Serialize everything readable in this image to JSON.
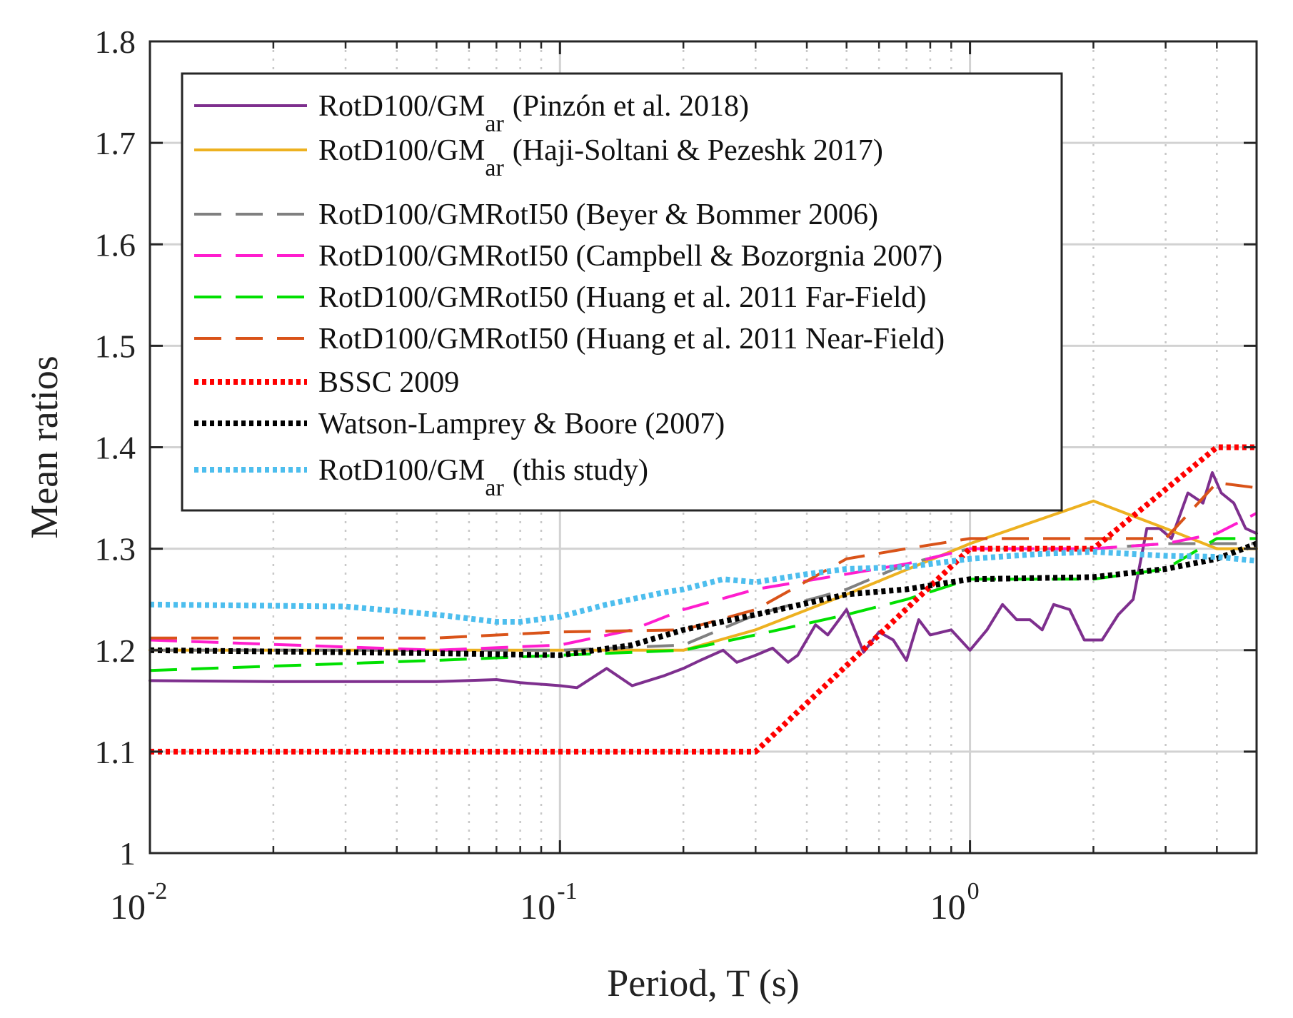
{
  "chart_data": {
    "type": "line",
    "title": "",
    "xlabel": "Period, T (s)",
    "ylabel": "Mean ratios",
    "xscale": "log",
    "xlim": [
      0.01,
      5
    ],
    "ylim": [
      1.0,
      1.8
    ],
    "grid": true,
    "legend_position": "upper-left",
    "x_ticks": [
      {
        "base": "10",
        "exp": "-2",
        "value": 0.01
      },
      {
        "base": "10",
        "exp": "-1",
        "value": 0.1
      },
      {
        "base": "10",
        "exp": "0",
        "value": 1
      }
    ],
    "y_ticks": [
      "1",
      "1.1",
      "1.2",
      "1.3",
      "1.4",
      "1.5",
      "1.6",
      "1.7",
      "1.8"
    ],
    "series": [
      {
        "name": "RotD100/GM",
        "name_sub": "ar",
        "name_suffix": "(Pinzón et al. 2018)",
        "color": "#7e2f8e",
        "style": "solid",
        "points": [
          [
            0.01,
            1.17
          ],
          [
            0.02,
            1.169
          ],
          [
            0.05,
            1.169
          ],
          [
            0.07,
            1.171
          ],
          [
            0.08,
            1.168
          ],
          [
            0.1,
            1.165
          ],
          [
            0.11,
            1.163
          ],
          [
            0.13,
            1.182
          ],
          [
            0.15,
            1.165
          ],
          [
            0.18,
            1.175
          ],
          [
            0.2,
            1.182
          ],
          [
            0.22,
            1.19
          ],
          [
            0.25,
            1.2
          ],
          [
            0.27,
            1.188
          ],
          [
            0.3,
            1.195
          ],
          [
            0.33,
            1.202
          ],
          [
            0.36,
            1.188
          ],
          [
            0.38,
            1.195
          ],
          [
            0.42,
            1.225
          ],
          [
            0.45,
            1.215
          ],
          [
            0.5,
            1.24
          ],
          [
            0.55,
            1.198
          ],
          [
            0.6,
            1.218
          ],
          [
            0.65,
            1.21
          ],
          [
            0.7,
            1.19
          ],
          [
            0.75,
            1.23
          ],
          [
            0.8,
            1.215
          ],
          [
            0.9,
            1.22
          ],
          [
            1.0,
            1.2
          ],
          [
            1.1,
            1.22
          ],
          [
            1.2,
            1.245
          ],
          [
            1.3,
            1.23
          ],
          [
            1.4,
            1.23
          ],
          [
            1.5,
            1.22
          ],
          [
            1.6,
            1.245
          ],
          [
            1.75,
            1.24
          ],
          [
            1.9,
            1.21
          ],
          [
            2.1,
            1.21
          ],
          [
            2.3,
            1.235
          ],
          [
            2.5,
            1.25
          ],
          [
            2.7,
            1.32
          ],
          [
            2.9,
            1.32
          ],
          [
            3.1,
            1.31
          ],
          [
            3.4,
            1.355
          ],
          [
            3.7,
            1.345
          ],
          [
            3.9,
            1.375
          ],
          [
            4.1,
            1.355
          ],
          [
            4.4,
            1.345
          ],
          [
            4.7,
            1.32
          ],
          [
            5.0,
            1.315
          ]
        ]
      },
      {
        "name": "RotD100/GM",
        "name_sub": "ar",
        "name_suffix": "(Haji-Soltani & Pezeshk 2017)",
        "color": "#edb120",
        "style": "solid",
        "points": [
          [
            0.01,
            1.2
          ],
          [
            0.1,
            1.2
          ],
          [
            0.2,
            1.2
          ],
          [
            0.3,
            1.22
          ],
          [
            0.5,
            1.255
          ],
          [
            1.0,
            1.305
          ],
          [
            2.0,
            1.347
          ],
          [
            3.0,
            1.32
          ],
          [
            4.0,
            1.3
          ],
          [
            5.0,
            1.3
          ]
        ]
      },
      {
        "name": "RotD100/GMRotI50 (Beyer & Bommer 2006)",
        "color": "#808080",
        "style": "dashed",
        "points": [
          [
            0.01,
            1.2
          ],
          [
            0.05,
            1.2
          ],
          [
            0.1,
            1.2
          ],
          [
            0.2,
            1.205
          ],
          [
            0.3,
            1.235
          ],
          [
            0.5,
            1.26
          ],
          [
            0.7,
            1.285
          ],
          [
            1.0,
            1.3
          ],
          [
            2.0,
            1.3
          ],
          [
            3.0,
            1.305
          ],
          [
            4.0,
            1.305
          ],
          [
            5.0,
            1.305
          ]
        ]
      },
      {
        "name": "RotD100/GMRotI50 (Campbell & Bozorgnia 2007)",
        "color": "#ff1dce",
        "style": "dashed",
        "points": [
          [
            0.01,
            1.21
          ],
          [
            0.05,
            1.2
          ],
          [
            0.1,
            1.205
          ],
          [
            0.15,
            1.22
          ],
          [
            0.2,
            1.24
          ],
          [
            0.3,
            1.26
          ],
          [
            0.5,
            1.275
          ],
          [
            0.7,
            1.285
          ],
          [
            1.0,
            1.3
          ],
          [
            2.0,
            1.3
          ],
          [
            3.0,
            1.305
          ],
          [
            4.0,
            1.315
          ],
          [
            5.0,
            1.335
          ]
        ]
      },
      {
        "name": "RotD100/GMRotI50 (Huang et al. 2011 Far-Field)",
        "color": "#00e000",
        "style": "dashed",
        "points": [
          [
            0.01,
            1.18
          ],
          [
            0.05,
            1.19
          ],
          [
            0.1,
            1.195
          ],
          [
            0.2,
            1.2
          ],
          [
            0.3,
            1.215
          ],
          [
            0.5,
            1.235
          ],
          [
            0.7,
            1.25
          ],
          [
            1.0,
            1.27
          ],
          [
            2.0,
            1.27
          ],
          [
            3.0,
            1.28
          ],
          [
            4.0,
            1.31
          ],
          [
            5.0,
            1.31
          ]
        ]
      },
      {
        "name": "RotD100/GMRotI50 (Huang et al. 2011 Near-Field)",
        "color": "#d95319",
        "style": "dashed",
        "points": [
          [
            0.01,
            1.212
          ],
          [
            0.05,
            1.212
          ],
          [
            0.1,
            1.218
          ],
          [
            0.2,
            1.22
          ],
          [
            0.3,
            1.24
          ],
          [
            0.5,
            1.29
          ],
          [
            0.7,
            1.3
          ],
          [
            1.0,
            1.31
          ],
          [
            2.0,
            1.31
          ],
          [
            3.0,
            1.31
          ],
          [
            4.0,
            1.365
          ],
          [
            5.0,
            1.36
          ]
        ]
      },
      {
        "name": "BSSC 2009",
        "color": "#ff0000",
        "style": "dotted",
        "points": [
          [
            0.01,
            1.1
          ],
          [
            0.2,
            1.1
          ],
          [
            0.3,
            1.1
          ],
          [
            1.0,
            1.3
          ],
          [
            2.0,
            1.3
          ],
          [
            4.0,
            1.4
          ],
          [
            5.0,
            1.4
          ]
        ]
      },
      {
        "name": "Watson-Lamprey & Boore (2007)",
        "color": "#000000",
        "style": "dotted",
        "points": [
          [
            0.01,
            1.2
          ],
          [
            0.05,
            1.197
          ],
          [
            0.1,
            1.195
          ],
          [
            0.15,
            1.205
          ],
          [
            0.2,
            1.22
          ],
          [
            0.3,
            1.235
          ],
          [
            0.5,
            1.255
          ],
          [
            0.7,
            1.26
          ],
          [
            1.0,
            1.27
          ],
          [
            2.0,
            1.272
          ],
          [
            3.0,
            1.28
          ],
          [
            4.0,
            1.29
          ],
          [
            5.0,
            1.305
          ]
        ]
      },
      {
        "name": "RotD100/GM",
        "name_sub": "ar",
        "name_suffix": "(this study)",
        "color": "#4dbeee",
        "style": "dotted",
        "points": [
          [
            0.01,
            1.245
          ],
          [
            0.03,
            1.243
          ],
          [
            0.05,
            1.235
          ],
          [
            0.07,
            1.228
          ],
          [
            0.08,
            1.228
          ],
          [
            0.1,
            1.233
          ],
          [
            0.13,
            1.245
          ],
          [
            0.18,
            1.257
          ],
          [
            0.2,
            1.26
          ],
          [
            0.25,
            1.27
          ],
          [
            0.3,
            1.267
          ],
          [
            0.4,
            1.275
          ],
          [
            0.5,
            1.28
          ],
          [
            0.7,
            1.282
          ],
          [
            1.0,
            1.29
          ],
          [
            1.5,
            1.295
          ],
          [
            2.0,
            1.297
          ],
          [
            3.0,
            1.293
          ],
          [
            4.0,
            1.292
          ],
          [
            5.0,
            1.288
          ]
        ]
      }
    ]
  }
}
